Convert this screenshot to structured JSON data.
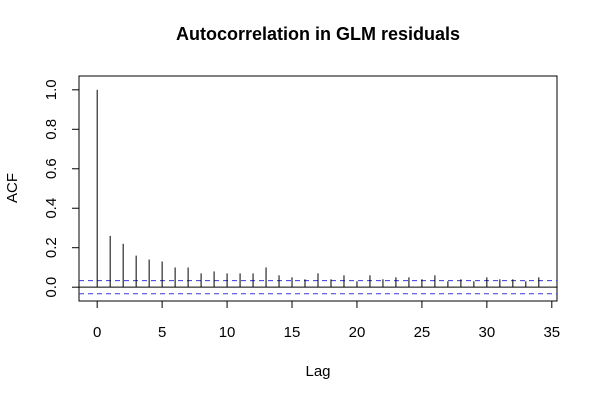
{
  "chart_data": {
    "type": "bar",
    "title": "Autocorrelation in GLM residuals",
    "xlabel": "Lag",
    "ylabel": "ACF",
    "xlim": [
      -1.4,
      35.4
    ],
    "ylim": [
      -0.07,
      1.07
    ],
    "x_ticks": [
      0,
      5,
      10,
      15,
      20,
      25,
      30,
      35
    ],
    "y_ticks": [
      0.0,
      0.2,
      0.4,
      0.6,
      0.8,
      1.0
    ],
    "x_tick_labels": [
      "0",
      "5",
      "10",
      "15",
      "20",
      "25",
      "30",
      "35"
    ],
    "y_tick_labels": [
      "0.0",
      "0.2",
      "0.4",
      "0.6",
      "0.8",
      "1.0"
    ],
    "lags": [
      0,
      1,
      2,
      3,
      4,
      5,
      6,
      7,
      8,
      9,
      10,
      11,
      12,
      13,
      14,
      15,
      16,
      17,
      18,
      19,
      20,
      21,
      22,
      23,
      24,
      25,
      26,
      27,
      28,
      29,
      30,
      31,
      32,
      33,
      34
    ],
    "acf": [
      1.0,
      0.26,
      0.22,
      0.16,
      0.14,
      0.13,
      0.1,
      0.1,
      0.07,
      0.08,
      0.07,
      0.07,
      0.07,
      0.1,
      0.06,
      0.05,
      0.04,
      0.07,
      0.04,
      0.06,
      0.03,
      0.06,
      0.04,
      0.05,
      0.05,
      0.04,
      0.06,
      0.03,
      0.04,
      0.03,
      0.05,
      0.04,
      0.04,
      0.03,
      0.05
    ],
    "confidence_band": [
      -0.033,
      0.033
    ],
    "grid": false,
    "colors": {
      "spike": "#000000",
      "band": "#3a3adb",
      "zero_line": "#000000"
    }
  }
}
